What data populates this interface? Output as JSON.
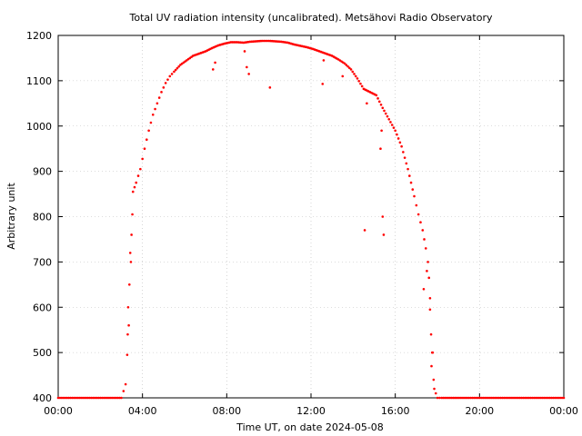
{
  "chart_data": {
    "type": "scatter",
    "title": "Total UV radiation intensity (uncalibrated). Metsähovi Radio Observatory",
    "xlabel": "Time UT, on date 2024-05-08",
    "ylabel": "Arbitrary unit",
    "xlim_hours": [
      0,
      24
    ],
    "ylim": [
      400,
      1200
    ],
    "x_tick_labels": [
      "00:00",
      "04:00",
      "08:00",
      "12:00",
      "16:00",
      "20:00",
      "00:00"
    ],
    "y_tick_labels": [
      "400",
      "500",
      "600",
      "700",
      "800",
      "900",
      "1000",
      "1100",
      "1200"
    ],
    "grid": true,
    "marker_color": "#ff0000",
    "series_main_hours": [
      0.0,
      1.0,
      2.0,
      3.0,
      3.2,
      3.35,
      3.45,
      3.55,
      3.7,
      3.9,
      4.1,
      4.3,
      4.5,
      4.7,
      4.9,
      5.1,
      5.3,
      5.5,
      5.8,
      6.1,
      6.4,
      6.7,
      7.0,
      7.3,
      7.6,
      7.9,
      8.2,
      8.5,
      8.8,
      9.1,
      9.4,
      9.7,
      10.0,
      10.3,
      10.6,
      10.9,
      11.2,
      11.5,
      11.8,
      12.1,
      12.4,
      12.7,
      13.0,
      13.3,
      13.6,
      13.9,
      14.2,
      14.5,
      14.8,
      15.1,
      15.4,
      15.7,
      16.0,
      16.3,
      16.6,
      16.9,
      17.1,
      17.3,
      17.45,
      17.55,
      17.65,
      17.75,
      17.85,
      18.0,
      18.2,
      19.0,
      20.0,
      21.0,
      22.0,
      23.0,
      24.0
    ],
    "series_main_values": [
      400,
      400,
      400,
      400,
      430,
      560,
      700,
      855,
      875,
      905,
      950,
      990,
      1025,
      1050,
      1075,
      1095,
      1110,
      1120,
      1135,
      1145,
      1155,
      1160,
      1165,
      1172,
      1178,
      1182,
      1185,
      1185,
      1184,
      1186,
      1187,
      1188,
      1188,
      1187,
      1186,
      1184,
      1180,
      1177,
      1174,
      1170,
      1165,
      1160,
      1155,
      1147,
      1138,
      1125,
      1105,
      1082,
      1075,
      1068,
      1040,
      1015,
      990,
      955,
      905,
      845,
      805,
      770,
      730,
      700,
      620,
      500,
      420,
      400,
      400,
      400,
      400,
      400,
      400,
      400,
      400
    ],
    "outliers_hours": [
      3.3,
      3.32,
      3.38,
      3.42,
      3.48,
      3.52,
      7.35,
      7.45,
      8.85,
      8.95,
      9.05,
      10.05,
      12.55,
      12.6,
      13.5,
      14.55,
      14.65,
      15.3,
      15.35,
      15.4,
      15.45,
      17.35,
      17.5,
      17.6,
      17.65,
      17.7,
      17.72,
      17.78,
      17.82
    ],
    "outliers_values": [
      540,
      600,
      650,
      720,
      760,
      805,
      1125,
      1140,
      1165,
      1130,
      1115,
      1085,
      1093,
      1145,
      1110,
      770,
      1050,
      950,
      990,
      800,
      760,
      640,
      680,
      665,
      595,
      540,
      470,
      500,
      440
    ]
  }
}
